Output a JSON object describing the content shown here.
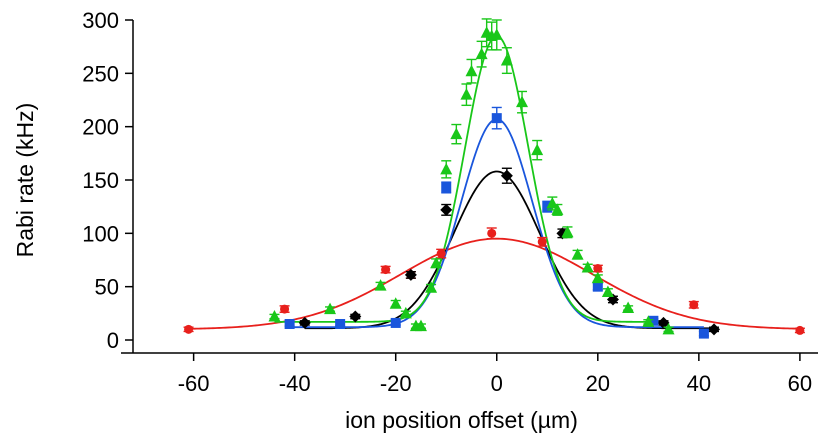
{
  "chart_data": {
    "type": "scatter",
    "xlabel": "ion position offset (µm)",
    "ylabel": "Rabi rate (kHz)",
    "xlim": [
      -72,
      62
    ],
    "ylim": [
      0,
      300
    ],
    "x_ticks": [
      -60,
      -40,
      -20,
      0,
      20,
      40,
      60
    ],
    "y_ticks": [
      0,
      50,
      100,
      150,
      200,
      250,
      300
    ],
    "grid": false,
    "legend": "none",
    "series": [
      {
        "color": "#e8201c",
        "marker": "circle",
        "x": [
          -61,
          -42,
          -22,
          -17,
          -11,
          -1,
          9,
          20,
          39,
          60
        ],
        "y": [
          10,
          29,
          66,
          61,
          81,
          100,
          92,
          67,
          33,
          9
        ],
        "err": [
          2,
          3,
          3,
          3,
          4,
          5,
          4,
          3,
          3,
          2
        ],
        "fit": {
          "center": 0,
          "amplitude": 85,
          "sigma": 19,
          "offset": 10,
          "xrange": [
            -61,
            60
          ]
        }
      },
      {
        "color": "#000000",
        "marker": "diamond",
        "x": [
          -38,
          -28,
          -17,
          -10,
          2,
          13,
          23,
          33,
          43
        ],
        "y": [
          16,
          22,
          61,
          122,
          154,
          100,
          38,
          16,
          10
        ],
        "err": [
          2,
          2,
          3,
          5,
          7,
          4,
          3,
          2,
          2
        ],
        "fit": {
          "center": 0,
          "amplitude": 147,
          "sigma": 8.5,
          "offset": 11,
          "xrange": [
            -38,
            43
          ]
        }
      },
      {
        "color": "#1a56dc",
        "marker": "square",
        "x": [
          -41,
          -31,
          -20,
          -10,
          0,
          10,
          20,
          31,
          41
        ],
        "y": [
          15,
          15,
          16,
          143,
          208,
          125,
          50,
          18,
          6
        ],
        "err": [
          2,
          2,
          2,
          5,
          10,
          5,
          3,
          2,
          2
        ],
        "fit": {
          "center": 0,
          "amplitude": 195,
          "sigma": 7.0,
          "offset": 12,
          "xrange": [
            -41,
            41
          ]
        }
      },
      {
        "color": "#19c719",
        "marker": "triangle",
        "x": [
          -44,
          -33,
          -23,
          -20,
          -18,
          -16,
          -15,
          -13,
          -12,
          -10,
          -8,
          -6,
          -5,
          -3,
          -2,
          -1,
          0,
          2,
          5,
          8,
          11,
          12,
          14,
          16,
          18,
          20,
          22,
          26,
          30,
          34
        ],
        "y": [
          22,
          29,
          51,
          34,
          25,
          13,
          13,
          49,
          72,
          160,
          193,
          230,
          252,
          268,
          288,
          285,
          286,
          262,
          223,
          178,
          128,
          122,
          101,
          80,
          68,
          58,
          45,
          30,
          17,
          10
        ],
        "err": [
          2,
          2,
          3,
          3,
          2,
          2,
          2,
          3,
          4,
          8,
          9,
          10,
          11,
          12,
          13,
          13,
          14,
          12,
          10,
          9,
          6,
          5,
          5,
          4,
          3,
          3,
          3,
          2,
          2,
          2
        ],
        "fit": {
          "center": 0,
          "amplitude": 268,
          "sigma": 6.3,
          "offset": 17,
          "xrange": [
            -44,
            34
          ]
        }
      }
    ]
  }
}
